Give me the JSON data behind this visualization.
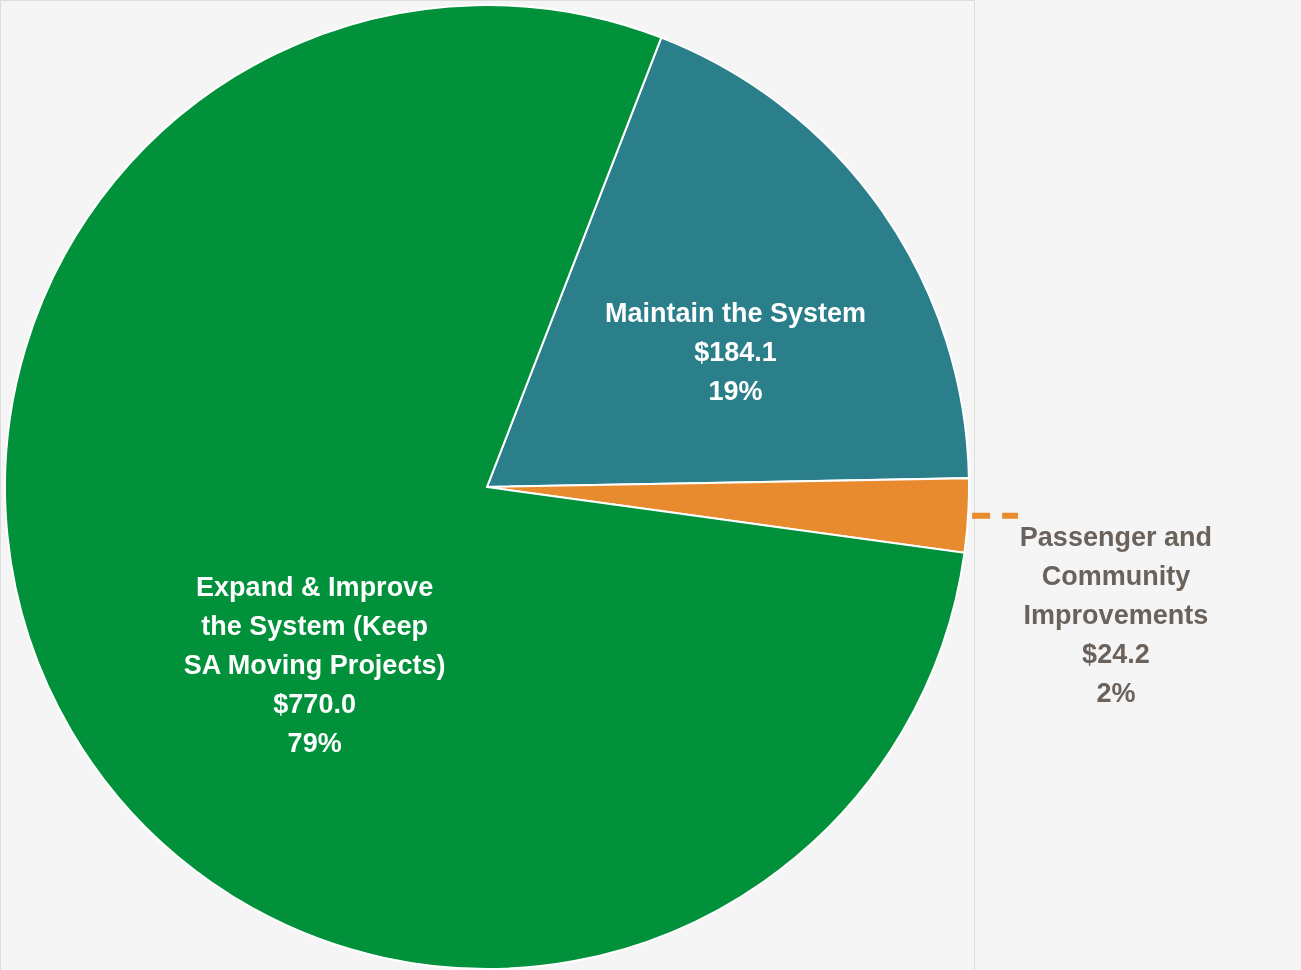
{
  "chart_data": {
    "type": "pie",
    "categories": [
      "Maintain the System",
      "Passenger and Community Improvements",
      "Expand & Improve the System (Keep SA Moving Projects)"
    ],
    "values": [
      184.1,
      24.2,
      770.0
    ],
    "colors": [
      "#2a7f8a",
      "#e88b2e",
      "#00913a"
    ],
    "value_labels": [
      "$184.1\n19%",
      "$24.2\n2%",
      "$770.0\n79%"
    ],
    "legend": false
  }
}
